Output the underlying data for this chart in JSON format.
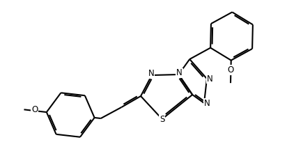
{
  "background_color": "#ffffff",
  "line_color": "#000000",
  "line_width": 1.5,
  "font_size": 8.5,
  "fig_width": 4.12,
  "fig_height": 2.24,
  "dpi": 100,
  "xlim": [
    0,
    10
  ],
  "ylim": [
    0,
    5.5
  ]
}
